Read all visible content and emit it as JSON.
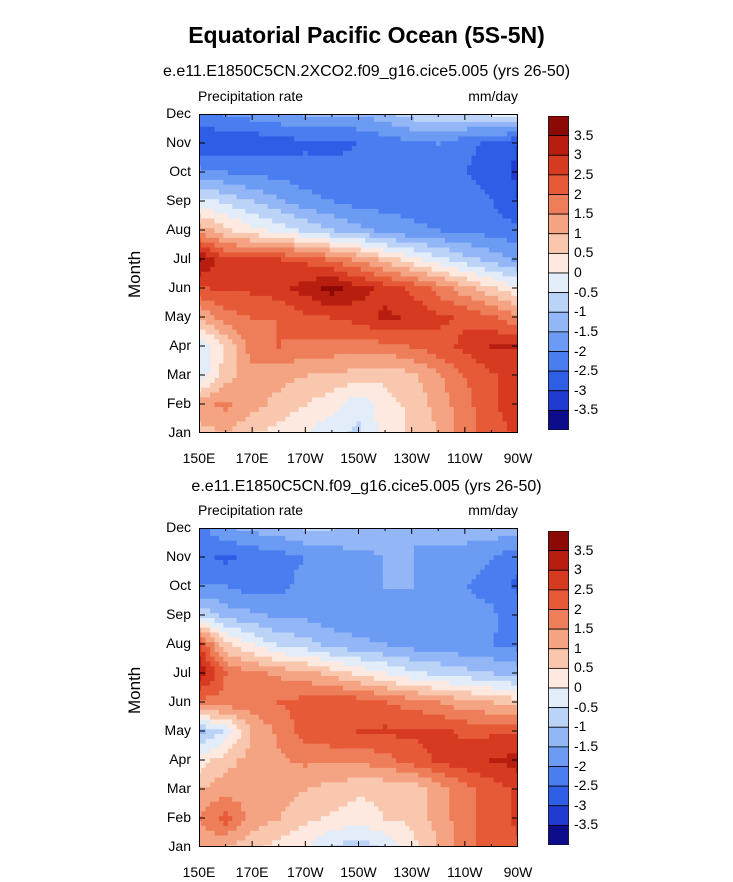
{
  "title": "Equatorial Pacific Ocean (5S-5N)",
  "colors": [
    "#0d0d8c",
    "#1f3bd1",
    "#2f5ee6",
    "#4a7ef0",
    "#6b9bf3",
    "#92b6f6",
    "#bcd3f8",
    "#e3edfa",
    "#fde9df",
    "#f8c7ae",
    "#f4a482",
    "#ee7e5a",
    "#e65a38",
    "#d63a20",
    "#b81e10",
    "#8c0a05"
  ],
  "chart_data": [
    {
      "type": "heatmap",
      "subtitle": "e.e11.E1850C5CN.2XCO2.f09_g16.cice5.005 (yrs 26-50)",
      "left_label": "Precipitation rate",
      "right_label": "mm/day",
      "xlabel": "",
      "ylabel": "Month",
      "x_ticks": [
        "150E",
        "170E",
        "170W",
        "150W",
        "130W",
        "110W",
        "90W"
      ],
      "y_ticks": [
        "Jan",
        "Feb",
        "Mar",
        "Apr",
        "May",
        "Jun",
        "Jul",
        "Aug",
        "Sep",
        "Oct",
        "Nov",
        "Dec"
      ],
      "colorbar_levels": [
        "-3.5",
        "-3",
        "-2.5",
        "-2",
        "-1.5",
        "-1",
        "-0.5",
        "0",
        "0.5",
        "1",
        "1.5",
        "2",
        "2.5",
        "3",
        "3.5"
      ],
      "grid_x": [
        "150E",
        "160E",
        "170E",
        "180",
        "170W",
        "160W",
        "150W",
        "140W",
        "130W",
        "120W",
        "110W",
        "100W",
        "90W"
      ],
      "values": [
        [
          0.8,
          1.0,
          0.5,
          0.3,
          0.0,
          -0.4,
          -0.6,
          0.2,
          0.6,
          1.0,
          1.8,
          2.2,
          2.6
        ],
        [
          1.3,
          1.6,
          1.2,
          0.8,
          0.5,
          0.2,
          -0.4,
          0.3,
          0.6,
          1.2,
          1.8,
          2.4,
          2.8
        ],
        [
          -0.4,
          0.8,
          1.3,
          1.2,
          1.0,
          0.9,
          0.8,
          0.6,
          0.9,
          1.4,
          2.0,
          2.4,
          2.8
        ],
        [
          -0.5,
          0.5,
          1.8,
          2.0,
          1.8,
          1.8,
          1.8,
          1.8,
          2.0,
          2.3,
          2.6,
          3.0,
          3.0
        ],
        [
          1.0,
          1.8,
          2.0,
          2.0,
          2.4,
          2.5,
          2.7,
          3.1,
          2.9,
          2.6,
          2.4,
          2.1,
          1.6
        ],
        [
          2.4,
          2.6,
          2.6,
          2.8,
          3.2,
          3.7,
          3.2,
          2.8,
          2.4,
          1.8,
          1.2,
          0.6,
          0.1
        ],
        [
          3.6,
          2.6,
          2.5,
          2.5,
          2.4,
          1.9,
          1.4,
          0.8,
          0.2,
          -0.3,
          -0.8,
          -1.2,
          -1.6
        ],
        [
          1.4,
          0.6,
          0.2,
          -0.2,
          -0.6,
          -1.0,
          -1.3,
          -1.7,
          -1.9,
          -2.0,
          -2.1,
          -2.2,
          -2.4
        ],
        [
          -0.3,
          -0.6,
          -1.0,
          -1.4,
          -1.8,
          -2.0,
          -2.2,
          -2.2,
          -2.2,
          -2.2,
          -2.3,
          -2.5,
          -3.0
        ],
        [
          -1.8,
          -2.0,
          -2.1,
          -2.2,
          -2.3,
          -2.4,
          -2.4,
          -2.3,
          -2.2,
          -2.1,
          -2.5,
          -2.7,
          -3.1
        ],
        [
          -3.0,
          -2.9,
          -2.9,
          -2.8,
          -2.6,
          -2.6,
          -2.5,
          -2.3,
          -2.1,
          -2.0,
          -2.4,
          -2.6,
          -3.0
        ],
        [
          -2.2,
          -2.0,
          -1.8,
          -1.6,
          -1.5,
          -1.5,
          -1.5,
          -1.2,
          -0.8,
          -0.6,
          -0.6,
          -0.5,
          -0.3
        ]
      ]
    },
    {
      "type": "heatmap",
      "subtitle": "e.e11.E1850C5CN.f09_g16.cice5.005 (yrs 26-50)",
      "left_label": "Precipitation rate",
      "right_label": "mm/day",
      "xlabel": "",
      "ylabel": "Month",
      "x_ticks": [
        "150E",
        "170E",
        "170W",
        "150W",
        "130W",
        "110W",
        "90W"
      ],
      "y_ticks": [
        "Jan",
        "Feb",
        "Mar",
        "Apr",
        "May",
        "Jun",
        "Jul",
        "Aug",
        "Sep",
        "Oct",
        "Nov",
        "Dec"
      ],
      "colorbar_levels": [
        "-3.5",
        "-3",
        "-2.5",
        "-2",
        "-1.5",
        "-1",
        "-0.5",
        "0",
        "0.5",
        "1",
        "1.5",
        "2",
        "2.5",
        "3",
        "3.5"
      ],
      "grid_x": [
        "150E",
        "160E",
        "170E",
        "180",
        "170W",
        "160W",
        "150W",
        "140W",
        "130W",
        "120W",
        "110W",
        "100W",
        "90W"
      ],
      "values": [
        [
          1.2,
          1.0,
          0.6,
          0.3,
          0.0,
          -0.6,
          -0.8,
          -0.4,
          0.3,
          1.0,
          1.8,
          2.2,
          2.4
        ],
        [
          1.5,
          2.2,
          1.3,
          1.0,
          0.6,
          0.4,
          0.2,
          0.5,
          0.6,
          1.2,
          1.8,
          2.2,
          2.6
        ],
        [
          1.0,
          1.3,
          1.2,
          1.2,
          1.0,
          0.8,
          0.6,
          0.6,
          0.6,
          1.2,
          1.8,
          2.2,
          2.6
        ],
        [
          0.2,
          0.8,
          1.2,
          1.4,
          1.6,
          1.6,
          1.6,
          1.8,
          2.2,
          2.6,
          2.8,
          3.0,
          3.2
        ],
        [
          -1.2,
          -0.4,
          1.0,
          1.6,
          2.2,
          2.4,
          2.5,
          2.6,
          2.6,
          2.6,
          2.4,
          2.4,
          2.4
        ],
        [
          1.8,
          1.8,
          1.8,
          2.0,
          2.2,
          2.4,
          2.3,
          2.0,
          1.8,
          1.5,
          1.2,
          1.0,
          0.8
        ],
        [
          3.4,
          2.0,
          1.6,
          1.4,
          1.2,
          0.8,
          0.4,
          0.0,
          -0.4,
          -0.6,
          -0.8,
          -1.0,
          -1.2
        ],
        [
          2.6,
          0.6,
          0.0,
          -0.6,
          -0.8,
          -1.2,
          -1.4,
          -1.5,
          -1.7,
          -1.8,
          -1.9,
          -2.0,
          -2.2
        ],
        [
          -0.6,
          -1.2,
          -1.4,
          -1.6,
          -1.6,
          -1.8,
          -1.8,
          -1.8,
          -1.8,
          -1.8,
          -1.8,
          -1.9,
          -2.3
        ],
        [
          -2.0,
          -2.0,
          -2.2,
          -2.2,
          -1.8,
          -1.6,
          -1.6,
          -1.5,
          -1.5,
          -1.6,
          -2.0,
          -2.2,
          -2.6
        ],
        [
          -2.4,
          -2.6,
          -2.4,
          -2.2,
          -2.0,
          -1.8,
          -1.6,
          -1.5,
          -1.5,
          -1.6,
          -1.8,
          -2.0,
          -2.4
        ],
        [
          -2.2,
          -1.6,
          -1.4,
          -1.2,
          -1.0,
          -1.0,
          -1.2,
          -1.4,
          -1.5,
          -1.4,
          -1.2,
          -1.2,
          -1.2
        ]
      ]
    }
  ]
}
